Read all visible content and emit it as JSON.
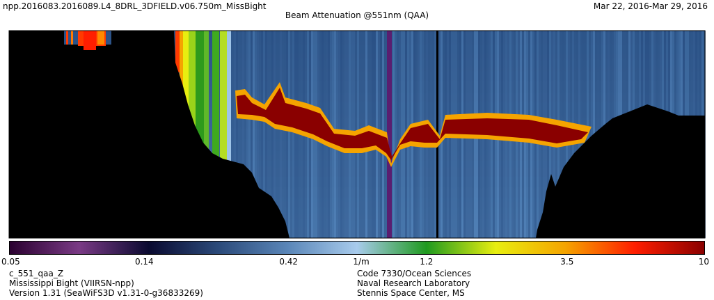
{
  "header": {
    "filename": "npp.2016083.2016089.L4_8DRL_3DFIELD.v06.750m_MissBight",
    "date_range": "Mar 22, 2016-Mar 29, 2016",
    "title": "Beam Attenuation @551nm (QAA)"
  },
  "chart_data": {
    "type": "heatmap",
    "title": "Beam Attenuation @551nm (QAA)",
    "colorbar": {
      "scale": "log",
      "range": [
        0.05,
        10
      ],
      "unit": "1/m",
      "tick_labels": [
        "0.05",
        "0.14",
        "0.42",
        "1/m",
        "1.2",
        "3.5",
        "10"
      ],
      "tick_values": [
        0.05,
        0.14,
        0.42,
        0.73,
        1.2,
        3.5,
        10
      ],
      "colors": [
        "#2a0030",
        "#7a3a85",
        "#0a0a30",
        "#2b4a7a",
        "#5a86b8",
        "#a8cbec",
        "#1f9a1f",
        "#e8ee10",
        "#f5a400",
        "#ff1e00",
        "#8a0000"
      ]
    },
    "no_data_color": "#000000",
    "background_color": "#2d5789"
  },
  "footer": {
    "left": [
      "c_551_qaa_Z",
      "Mississippi Bight (VIIRSN-npp)",
      "Version 1.31 (SeaWiFS3D v1.31-0-g36833269)"
    ],
    "right": [
      "Code 7330/Ocean Sciences",
      "Naval Research Laboratory",
      "Stennis Space Center, MS"
    ]
  }
}
